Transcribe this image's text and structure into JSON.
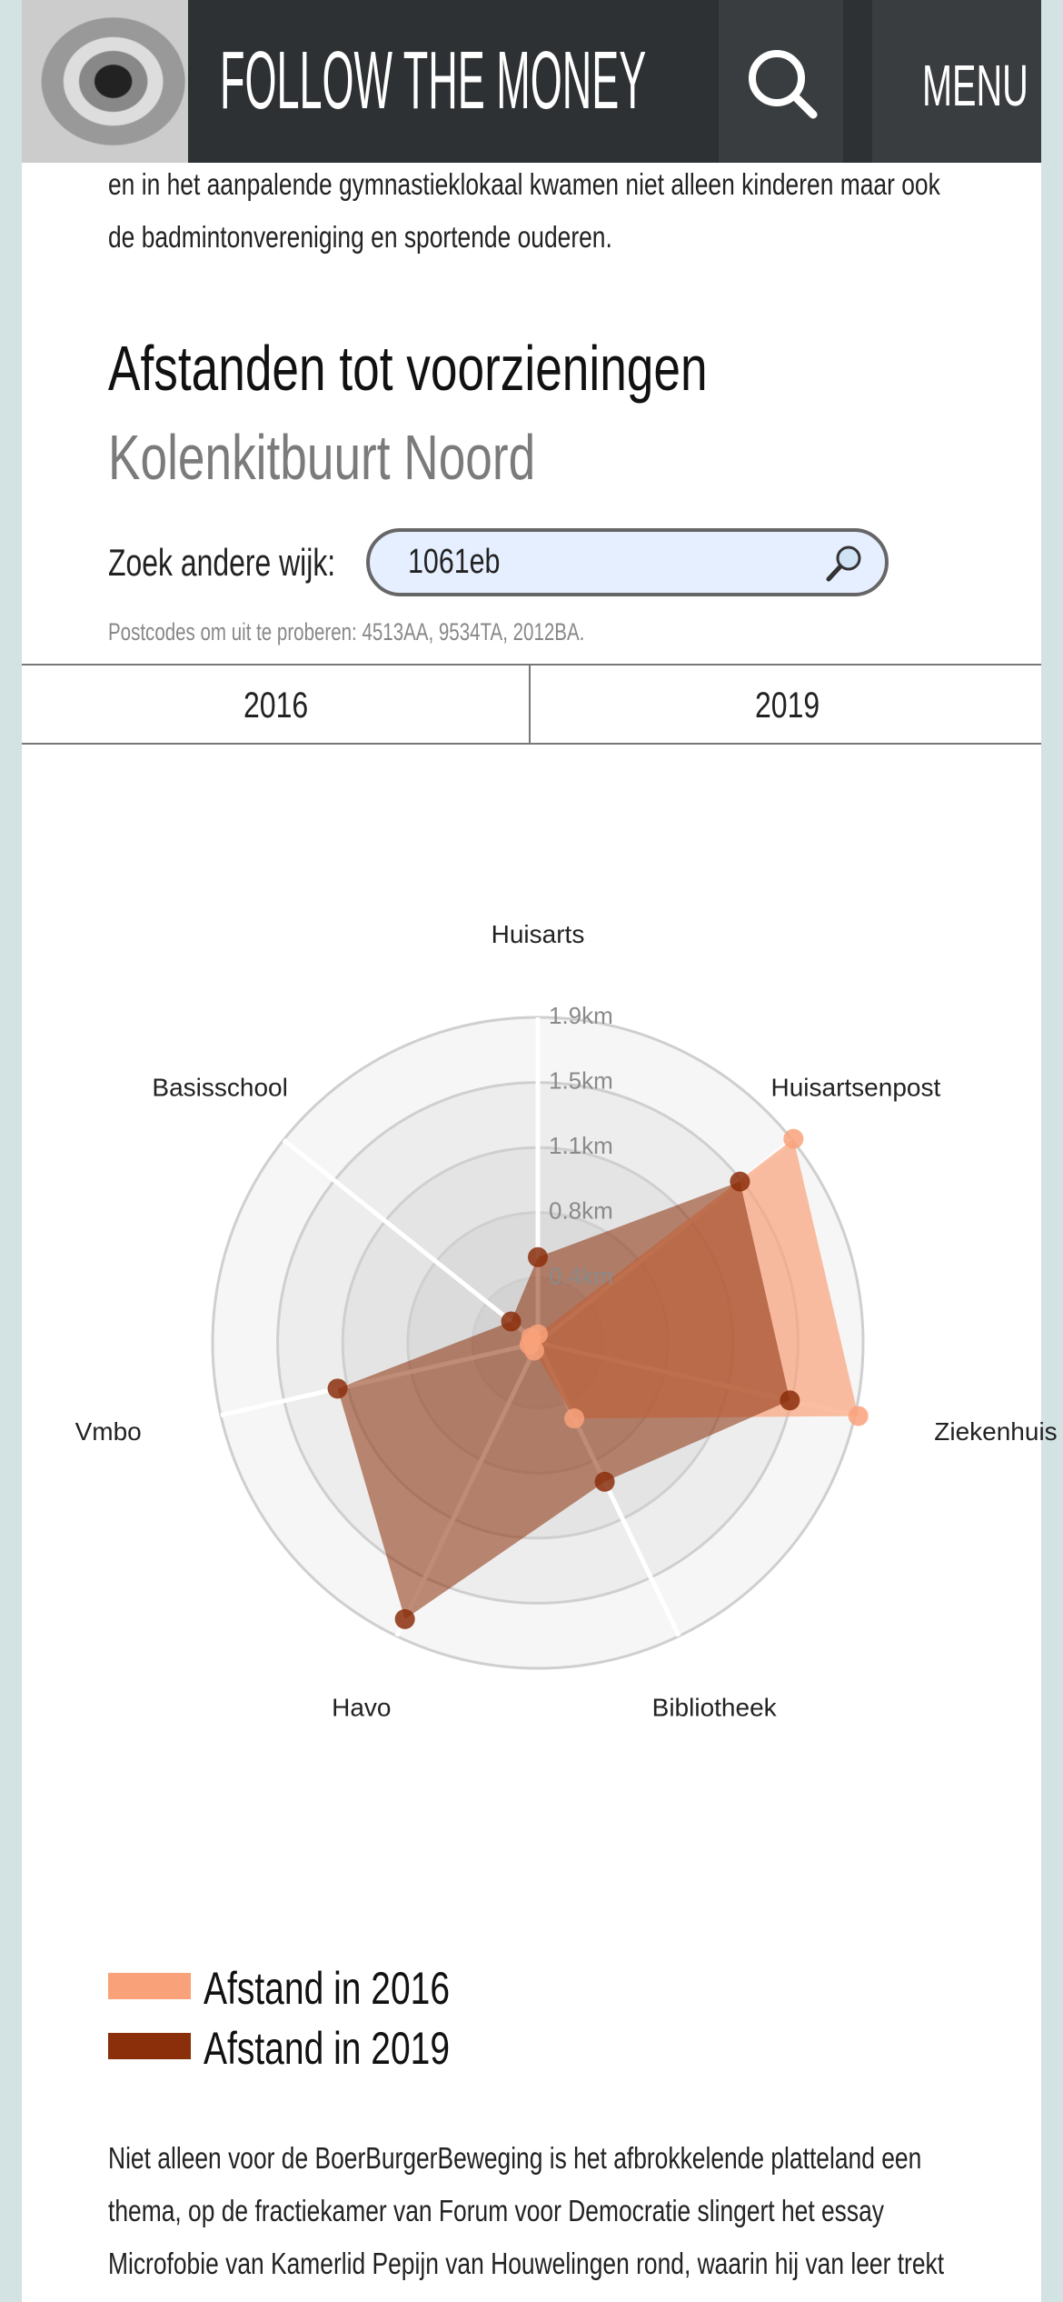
{
  "header": {
    "title": "FOLLOW THE MONEY",
    "menu": "MENU"
  },
  "intro_lines": [
    "en in het aanpalende gymnastieklokaal kwamen niet alleen kinderen maar ook",
    "de badmintonvereniging en sportende ouderen."
  ],
  "search": {
    "label": "Zoek andere wijk:",
    "value": "1061eb",
    "hint": "Postcodes om uit te proberen: 4513AA, 9534TA, 2012BA."
  },
  "tabs": [
    "2016",
    "2019"
  ],
  "chart_data": {
    "type": "radar",
    "title": "Afstanden tot voorzieningen",
    "subtitle": "Kolenkitbuurt Noord",
    "categories": [
      "Huisarts",
      "Huisartsenpost",
      "Ziekenhuis",
      "Bibliotheek",
      "Havo",
      "Vmbo",
      "Basisschool"
    ],
    "series": [
      {
        "name": "Afstand in 2016",
        "color": "#f9a27a",
        "values": [
          0.05,
          1.91,
          1.92,
          0.49,
          0.05,
          0.05,
          0.05
        ]
      },
      {
        "name": "Afstand in 2019",
        "color": "#8b2e0a",
        "values": [
          0.5,
          1.51,
          1.51,
          0.9,
          1.79,
          1.2,
          0.2
        ]
      }
    ],
    "ylim": [
      0,
      1.9
    ],
    "yticks": [
      {
        "value": 0.38,
        "label": "0.4km"
      },
      {
        "value": 0.76,
        "label": "0.8km"
      },
      {
        "value": 1.14,
        "label": "1.1km"
      },
      {
        "value": 1.52,
        "label": "1.5km"
      },
      {
        "value": 1.9,
        "label": "1.9km"
      }
    ]
  },
  "outro_lines": [
    "Niet alleen voor de BoerBurgerBeweging is het afbrokkelende platteland een",
    "thema, op de fractiekamer van Forum voor Democratie slingert het essay",
    "Microfobie van Kamerlid Pepijn van Houwelingen rond, waarin hij van leer trekt"
  ]
}
